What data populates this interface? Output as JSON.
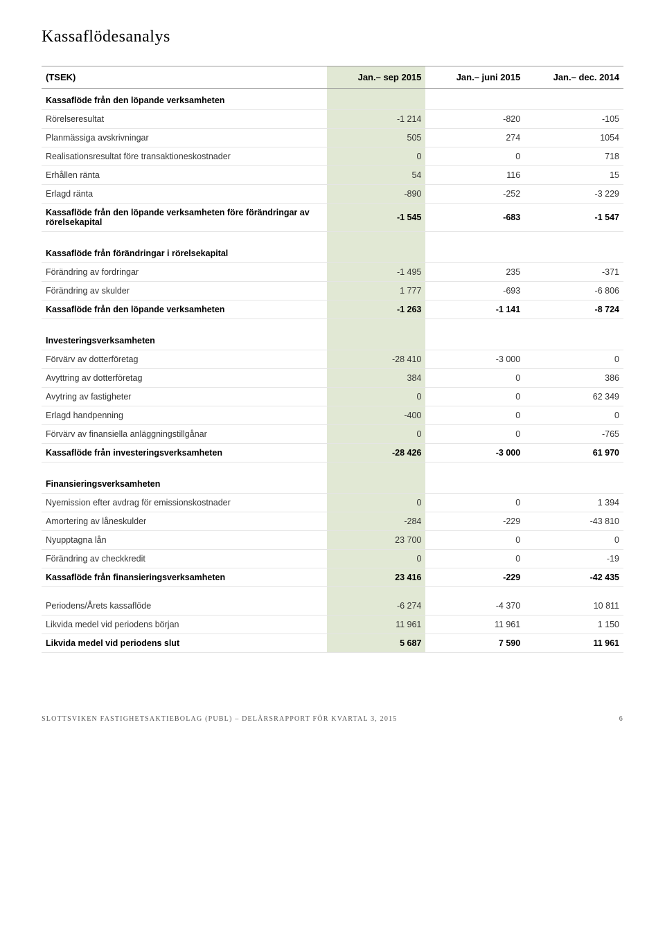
{
  "title": "Kassaflödesanalys",
  "columns": {
    "label": "(TSEK)",
    "c1": "Jan.– sep 2015",
    "c2": "Jan.– juni 2015",
    "c3": "Jan.– dec. 2014"
  },
  "colors": {
    "highlight_bg": "#e1e8d4",
    "border": "#999999",
    "row_border": "#e5e5e5",
    "text": "#333333"
  },
  "sections": [
    {
      "header": "Kassaflöde från den löpande verksamheten",
      "rows": [
        {
          "label": "Rörelseresultat",
          "v": [
            "-1 214",
            "-820",
            "-105"
          ]
        },
        {
          "label": "Planmässiga avskrivningar",
          "v": [
            "505",
            "274",
            "1054"
          ]
        },
        {
          "label": "Realisationsresultat före transaktioneskostnader",
          "v": [
            "0",
            "0",
            "718"
          ]
        },
        {
          "label": "Erhållen ränta",
          "v": [
            "54",
            "116",
            "15"
          ]
        },
        {
          "label": "Erlagd ränta",
          "v": [
            "-890",
            "-252",
            "-3 229"
          ]
        },
        {
          "label": "Kassaflöde från den löpande verksamheten före förändringar av rörelsekapital",
          "v": [
            "-1 545",
            "-683",
            "-1 547"
          ],
          "bold": true
        }
      ]
    },
    {
      "header": "Kassaflöde från förändringar i rörelsekapital",
      "rows": [
        {
          "label": "Förändring av fordringar",
          "v": [
            "-1 495",
            "235",
            "-371"
          ]
        },
        {
          "label": "Förändring av skulder",
          "v": [
            "1 777",
            "-693",
            "-6 806"
          ]
        },
        {
          "label": "Kassaflöde från den löpande verksamheten",
          "v": [
            "-1 263",
            "-1 141",
            "-8 724"
          ],
          "bold": true
        }
      ]
    },
    {
      "header": "Investeringsverksamheten",
      "rows": [
        {
          "label": "Förvärv av dotterföretag",
          "v": [
            "-28 410",
            "-3 000",
            "0"
          ]
        },
        {
          "label": "Avyttring av dotterföretag",
          "v": [
            "384",
            "0",
            "386"
          ]
        },
        {
          "label": "Avytring av fastigheter",
          "v": [
            "0",
            "0",
            "62 349"
          ]
        },
        {
          "label": "Erlagd handpenning",
          "v": [
            "-400",
            "0",
            "0"
          ]
        },
        {
          "label": "Förvärv av finansiella anläggningstillgånar",
          "v": [
            "0",
            "0",
            "-765"
          ]
        },
        {
          "label": "Kassaflöde från investeringsverksamheten",
          "v": [
            "-28 426",
            "-3 000",
            "61 970"
          ],
          "bold": true
        }
      ]
    },
    {
      "header": "Finansieringsverksamheten",
      "rows": [
        {
          "label": "Nyemission efter avdrag för emissionskostnader",
          "v": [
            "0",
            "0",
            "1 394"
          ]
        },
        {
          "label": "Amortering av låneskulder",
          "v": [
            "-284",
            "-229",
            "-43 810"
          ]
        },
        {
          "label": "Nyupptagna lån",
          "v": [
            "23 700",
            "0",
            "0"
          ]
        },
        {
          "label": "Förändring av checkkredit",
          "v": [
            "0",
            "0",
            "-19"
          ]
        },
        {
          "label": "Kassaflöde från finansieringsverksamheten",
          "v": [
            "23 416",
            "-229",
            "-42 435"
          ],
          "bold": true
        }
      ]
    },
    {
      "header": "",
      "rows": [
        {
          "label": "Periodens/Årets kassaflöde",
          "v": [
            "-6 274",
            "-4 370",
            "10 811"
          ]
        },
        {
          "label": "Likvida medel vid periodens början",
          "v": [
            "11 961",
            "11 961",
            "1 150"
          ]
        },
        {
          "label": "Likvida medel vid periodens slut",
          "v": [
            "5 687",
            "7 590",
            "11 961"
          ],
          "bold": true
        }
      ]
    }
  ],
  "footer": {
    "left": "SLOTTSVIKEN FASTIGHETSAKTIEBOLAG (PUBL) – DELÅRSRAPPORT FÖR KVARTAL 3, 2015",
    "page": "6"
  }
}
